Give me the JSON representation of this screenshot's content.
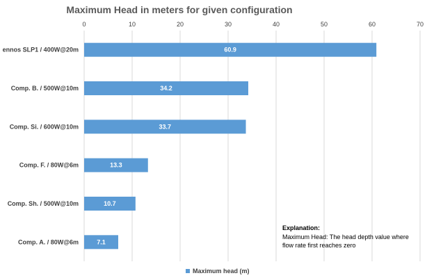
{
  "colors": {
    "bar": "#5b9bd5",
    "grid": "#d9d9d9",
    "axis_text": "#404040",
    "title": "#595959"
  },
  "chart_data": {
    "type": "bar",
    "orientation": "horizontal",
    "title": "Maximum Head in meters for given configuration",
    "categories": [
      "ennos SLP1 / 400W@20m",
      "Comp. B. / 500W@10m",
      "Comp. Si. / 600W@10m",
      "Comp. F. / 80W@6m",
      "Comp. Sh. / 500W@10m",
      "Comp. A. / 80W@6m"
    ],
    "series": [
      {
        "name": "Maximum head (m)",
        "values": [
          60.9,
          34.2,
          33.7,
          13.3,
          10.7,
          7.1
        ]
      }
    ],
    "data_labels": [
      "60.9",
      "34.2",
      "33.7",
      "13.3",
      "10.7",
      "7.1"
    ],
    "xlim": [
      0,
      70
    ],
    "xticks": [
      "0",
      "10",
      "20",
      "30",
      "40",
      "50",
      "60",
      "70"
    ],
    "x_axis_position": "top",
    "grid": true,
    "legend_position": "bottom",
    "annotation": {
      "heading": "Explanation:",
      "lines": [
        "Maximum Head: The head depth value where",
        "flow rate first reaches zero"
      ]
    }
  }
}
